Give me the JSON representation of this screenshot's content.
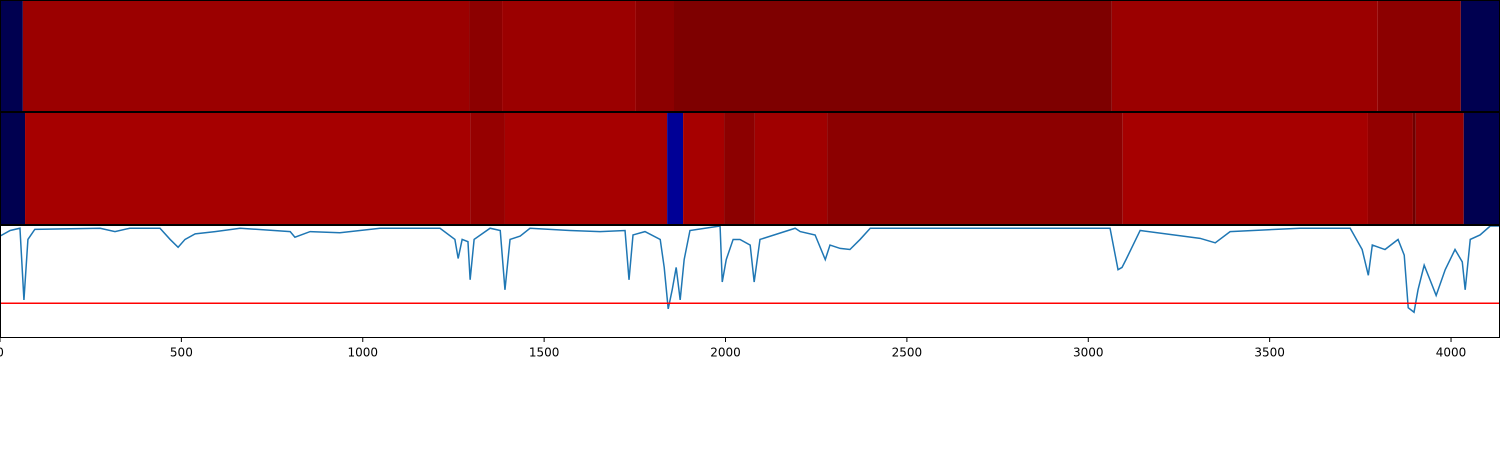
{
  "chart_data": [
    {
      "type": "heatmap",
      "xlim": [
        0,
        4135
      ],
      "bins": [
        0,
        63,
        1293,
        1384,
        1753,
        1858,
        3065,
        3798,
        4027,
        4135
      ],
      "colors": [
        "#000050",
        "#9b0000",
        "#8c0000",
        "#9b0000",
        "#8c0000",
        "#7e0000",
        "#9b0000",
        "#8c0000",
        "#000050"
      ]
    },
    {
      "type": "heatmap",
      "xlim": [
        0,
        4135
      ],
      "bins": [
        0,
        69,
        1296,
        1392,
        1839,
        1883,
        1996,
        2081,
        2280,
        3095,
        3771,
        3895,
        3903,
        4035,
        4135
      ],
      "colors": [
        "#000050",
        "#a60000",
        "#960000",
        "#a60000",
        "#000096",
        "#a60000",
        "#8c0000",
        "#a00000",
        "#8c0000",
        "#a60000",
        "#930000",
        "#6e0000",
        "#960000",
        "#000050"
      ]
    },
    {
      "type": "line",
      "xlim": [
        0,
        4135
      ],
      "ylim": [
        0,
        1
      ],
      "xticks": [
        0,
        500,
        1000,
        1500,
        2000,
        2500,
        3000,
        3500,
        4000
      ],
      "hline": 0.31,
      "hline_color": "#ff0000",
      "series": [
        {
          "color": "#1f77b4",
          "x": [
            0,
            28,
            55,
            66,
            77,
            96,
            276,
            317,
            358,
            441,
            469,
            491,
            510,
            538,
            593,
            662,
            800,
            813,
            855,
            937,
            1048,
            1213,
            1254,
            1263,
            1274,
            1290,
            1296,
            1307,
            1351,
            1379,
            1392,
            1406,
            1434,
            1461,
            1571,
            1654,
            1723,
            1734,
            1745,
            1778,
            1820,
            1831,
            1842,
            1853,
            1864,
            1875,
            1886,
            1902,
            1985,
            1991,
            2002,
            2021,
            2040,
            2068,
            2079,
            2095,
            2192,
            2206,
            2247,
            2275,
            2288,
            2316,
            2343,
            2371,
            2399,
            3060,
            3082,
            3093,
            3104,
            3143,
            3308,
            3350,
            3391,
            3584,
            3722,
            3755,
            3772,
            3783,
            3818,
            3854,
            3871,
            3882,
            3898,
            3909,
            3926,
            3942,
            3959,
            3984,
            4011,
            4031,
            4039,
            4053,
            4080,
            4108,
            4135
          ],
          "values": [
            0.91,
            0.96,
            0.98,
            0.34,
            0.88,
            0.97,
            0.98,
            0.95,
            0.98,
            0.98,
            0.88,
            0.81,
            0.88,
            0.93,
            0.95,
            0.98,
            0.95,
            0.9,
            0.95,
            0.94,
            0.98,
            0.98,
            0.88,
            0.71,
            0.88,
            0.86,
            0.52,
            0.88,
            0.98,
            0.96,
            0.43,
            0.88,
            0.91,
            0.98,
            0.96,
            0.95,
            0.96,
            0.52,
            0.92,
            0.95,
            0.88,
            0.63,
            0.26,
            0.43,
            0.63,
            0.34,
            0.7,
            0.96,
            1.0,
            0.5,
            0.7,
            0.88,
            0.88,
            0.83,
            0.5,
            0.88,
            0.98,
            0.95,
            0.92,
            0.7,
            0.83,
            0.8,
            0.79,
            0.88,
            0.98,
            0.98,
            0.61,
            0.63,
            0.7,
            0.96,
            0.89,
            0.85,
            0.95,
            0.98,
            0.98,
            0.79,
            0.56,
            0.83,
            0.79,
            0.88,
            0.74,
            0.27,
            0.23,
            0.43,
            0.65,
            0.52,
            0.38,
            0.61,
            0.79,
            0.68,
            0.43,
            0.88,
            0.92,
            1.0,
            1.0
          ]
        }
      ]
    }
  ]
}
